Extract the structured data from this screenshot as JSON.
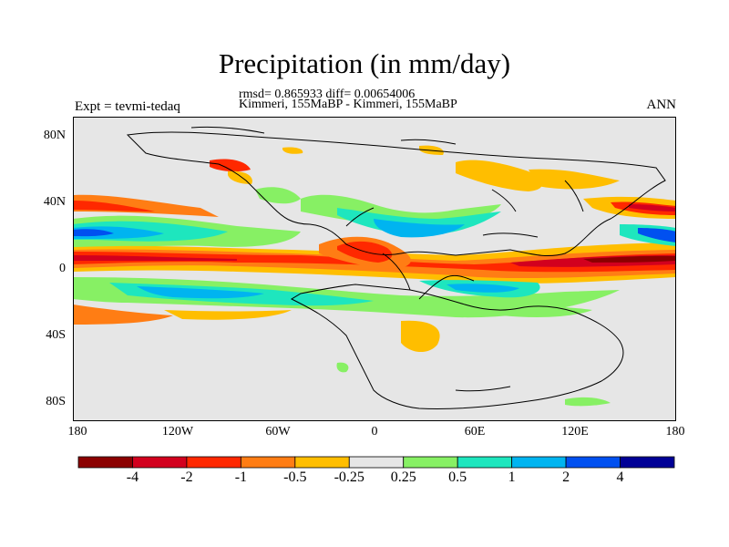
{
  "header": {
    "title": "Precipitation (in mm/day)",
    "stats": "rmsd= 0.865933 diff= 0.00654006",
    "comparison": "Kimmeri, 155MaBP - Kimmeri, 155MaBP",
    "experiment": "Expt = tevmi-tedaq",
    "season": "ANN"
  },
  "axes": {
    "lat_labels": [
      "80N",
      "40N",
      "0",
      "40S",
      "80S"
    ],
    "lon_labels": [
      "180",
      "120W",
      "60W",
      "0",
      "60E",
      "120E",
      "180"
    ]
  },
  "colorbar": {
    "labels": [
      "-4",
      "-2",
      "-1",
      "-0.5",
      "-0.25",
      "0.25",
      "0.5",
      "1",
      "2",
      "4"
    ],
    "colors": [
      "#8b0000",
      "#d2001e",
      "#ff2800",
      "#ff7d14",
      "#ffbe00",
      "#e6e6e6",
      "#87f064",
      "#1ee6be",
      "#00b4f0",
      "#0050f0",
      "#000096"
    ]
  }
}
